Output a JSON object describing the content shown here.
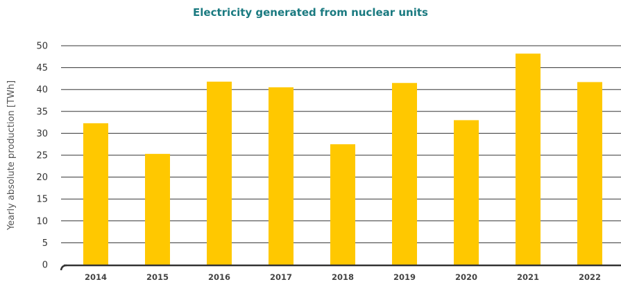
{
  "chart_data": {
    "type": "bar",
    "title": "Electricity generated from nuclear units",
    "xlabel": "",
    "ylabel": "Yearly absolute production [TWh]",
    "categories": [
      "2014",
      "2015",
      "2016",
      "2017",
      "2018",
      "2019",
      "2020",
      "2021",
      "2022"
    ],
    "values": [
      32.3,
      25.3,
      41.8,
      40.5,
      27.5,
      41.5,
      33.0,
      48.2,
      41.7
    ],
    "ylim": [
      0,
      50
    ],
    "yticks": [
      "0",
      "5",
      "10",
      "15",
      "20",
      "25",
      "30",
      "35",
      "40",
      "45",
      "50"
    ],
    "grid": true,
    "legend": "none",
    "colors": {
      "bar": "#ffc800",
      "title": "#1a7a80",
      "grid": "#333333",
      "axis": "#333333"
    }
  }
}
